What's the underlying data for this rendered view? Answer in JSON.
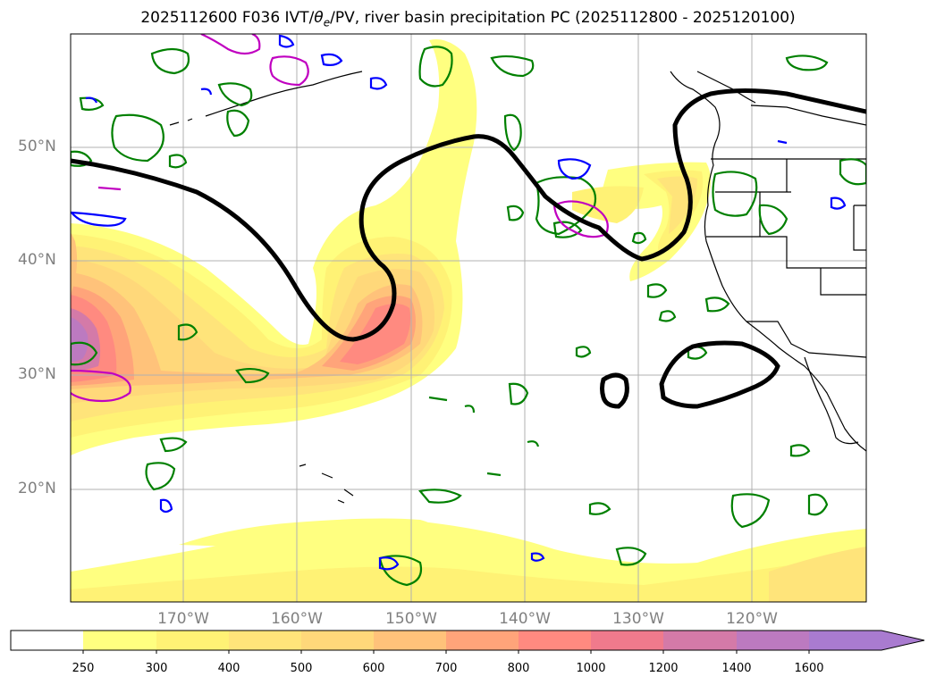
{
  "title": "2025112600 F036 IVT/θe/PV, river basin precipitation PC (2025112800 - 2025120100)",
  "title_parts": {
    "prefix": "2025112600 F036 IVT/",
    "theta": "θ",
    "theta_sub": "e",
    "suffix": "/PV, river basin precipitation PC (2025112800 - 2025120100)"
  },
  "lat_labels": [
    "50°N",
    "40°N",
    "30°N",
    "20°N"
  ],
  "lon_labels": [
    "170°W",
    "160°W",
    "150°W",
    "140°W",
    "130°W",
    "120°W"
  ],
  "colorbar": {
    "ticks": [
      "250",
      "300",
      "400",
      "500",
      "600",
      "700",
      "800",
      "1000",
      "1200",
      "1400",
      "1600"
    ],
    "colors": [
      "#ffffff",
      "#ffff80",
      "#fff275",
      "#ffe47a",
      "#ffd87a",
      "#ffc27a",
      "#ffa47a",
      "#ff8a80",
      "#f07a8c",
      "#d47aa8",
      "#bc7ac0",
      "#a97bd0"
    ],
    "extend": "max"
  },
  "colors": {
    "ivt_contour": "#000000",
    "pv_green": "#008000",
    "pv_blue": "#0000ff",
    "pv_magenta": "#c000c0",
    "coast": "#000000",
    "grid": "#b0b0b0"
  }
}
